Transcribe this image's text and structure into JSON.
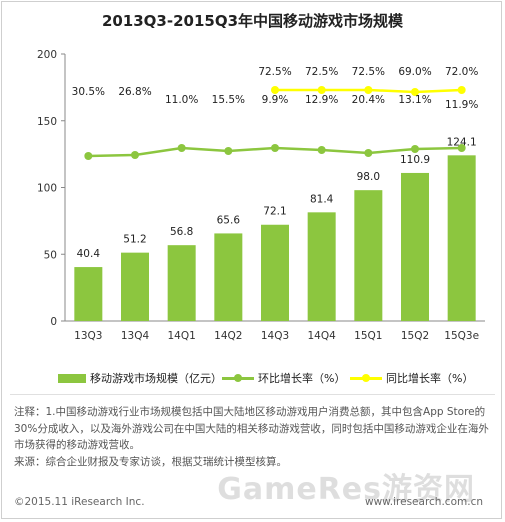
{
  "chart_data": {
    "type": "bar",
    "title": "2013Q3-2015Q3年中国移动游戏市场规模",
    "categories": [
      "13Q3",
      "13Q4",
      "14Q1",
      "14Q2",
      "14Q3",
      "14Q4",
      "15Q1",
      "15Q2",
      "15Q3e"
    ],
    "ylim": [
      0,
      200
    ],
    "yticks": [
      "0",
      "50",
      "100",
      "150",
      "200"
    ],
    "series": [
      {
        "name": "移动游戏市场规模（亿元）",
        "type": "bar",
        "values": [
          40.4,
          51.2,
          56.8,
          65.6,
          72.1,
          81.4,
          98.0,
          110.9,
          124.1
        ],
        "labels": [
          "40.4",
          "51.2",
          "56.8",
          "65.6",
          "72.1",
          "81.4",
          "98.0",
          "110.9",
          "124.1"
        ]
      },
      {
        "name": "环比增长率（%）",
        "type": "line",
        "values": [
          30.5,
          26.8,
          11.0,
          15.5,
          9.9,
          12.9,
          20.4,
          13.1,
          11.9
        ],
        "labels": [
          "30.5%",
          "26.8%",
          "11.0%",
          "15.5%",
          "9.9%",
          "12.9%",
          "20.4%",
          "13.1%",
          "11.9%"
        ]
      },
      {
        "name": "同比增长率（%）",
        "type": "line",
        "values": [
          null,
          null,
          null,
          null,
          72.5,
          72.5,
          72.5,
          69.0,
          72.0
        ],
        "labels": [
          "",
          "",
          "",
          "",
          "72.5%",
          "72.5%",
          "72.5%",
          "69.0%",
          "72.0%"
        ]
      }
    ],
    "grid": false,
    "legend": "bottom"
  },
  "colors": {
    "bar": "#8cc63f",
    "mom": "#8cc63f",
    "yoy": "#ffff00"
  },
  "legend": {
    "bar": "移动游戏市场规模（亿元）",
    "mom": "环比增长率（%）",
    "yoy": "同比增长率（%）"
  },
  "notes": {
    "note": "注释：1.中国移动游戏行业市场规模包括中国大陆地区移动游戏用户消费总额，其中包含App Store的30%分成收入，以及海外游戏公司在中国大陆的相关移动游戏营收，同时包括中国移动游戏企业在海外市场获得的移动游戏营收。",
    "source": "来源：综合企业财报及专家访谈，根据艾瑞统计模型核算。"
  },
  "footer": {
    "copyright": "©2015.11 iResearch Inc.",
    "site": "www.iresearch.com.cn",
    "watermark": "GameRes游资网"
  }
}
